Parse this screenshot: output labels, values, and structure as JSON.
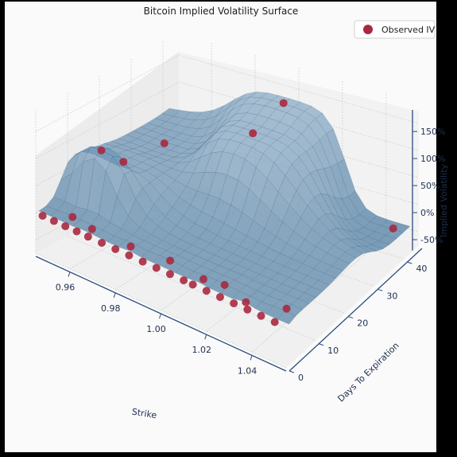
{
  "chart_data": {
    "type": "surface",
    "title": "Bitcoin Implied Volatility Surface",
    "xlabel": "Strike",
    "ylabel": "Days To Expiration",
    "zlabel": "Implied Volatility",
    "xlim": [
      0.945,
      1.055
    ],
    "ylim": [
      0,
      45
    ],
    "zlim": [
      -75,
      190
    ],
    "x_ticks": [
      {
        "value": 0.96,
        "label": "0.96"
      },
      {
        "value": 0.98,
        "label": "0.98"
      },
      {
        "value": 1.0,
        "label": "1.00"
      },
      {
        "value": 1.02,
        "label": "1.02"
      },
      {
        "value": 1.04,
        "label": "1.04"
      }
    ],
    "y_ticks": [
      {
        "value": 0,
        "label": "0"
      },
      {
        "value": 10,
        "label": "10"
      },
      {
        "value": 20,
        "label": "20"
      },
      {
        "value": 30,
        "label": "30"
      },
      {
        "value": 40,
        "label": "40"
      }
    ],
    "z_ticks": [
      {
        "value": -50,
        "label": "-50%"
      },
      {
        "value": 0,
        "label": "0%"
      },
      {
        "value": 50,
        "label": "50%"
      },
      {
        "value": 100,
        "label": "100%"
      },
      {
        "value": 150,
        "label": "150%"
      }
    ],
    "legend": {
      "position": "top-right",
      "entries": [
        {
          "label": "Observed IV",
          "color": "#a8293f"
        }
      ]
    },
    "surface_color": "#3a6e99",
    "grid": true,
    "series": [
      {
        "name": "Observed IV",
        "type": "scatter",
        "points": [
          {
            "x": 0.948,
            "y": 0,
            "z": 0
          },
          {
            "x": 0.953,
            "y": 0,
            "z": 0
          },
          {
            "x": 0.958,
            "y": 0,
            "z": 0
          },
          {
            "x": 0.957,
            "y": 3,
            "z": 5
          },
          {
            "x": 0.963,
            "y": 0,
            "z": 0
          },
          {
            "x": 0.968,
            "y": 0,
            "z": 0
          },
          {
            "x": 0.967,
            "y": 2,
            "z": 5
          },
          {
            "x": 0.974,
            "y": 0,
            "z": 0
          },
          {
            "x": 0.98,
            "y": 0,
            "z": 0
          },
          {
            "x": 0.984,
            "y": 2,
            "z": 5
          },
          {
            "x": 0.986,
            "y": 0,
            "z": 0
          },
          {
            "x": 0.992,
            "y": 0,
            "z": 0
          },
          {
            "x": 0.998,
            "y": 0,
            "z": 0
          },
          {
            "x": 1.0,
            "y": 3,
            "z": 5
          },
          {
            "x": 1.004,
            "y": 0,
            "z": 0
          },
          {
            "x": 1.01,
            "y": 0,
            "z": 0
          },
          {
            "x": 1.014,
            "y": 0,
            "z": 0
          },
          {
            "x": 1.016,
            "y": 2,
            "z": 5
          },
          {
            "x": 1.02,
            "y": 0,
            "z": 0
          },
          {
            "x": 1.024,
            "y": 3,
            "z": 5
          },
          {
            "x": 1.026,
            "y": 0,
            "z": 0
          },
          {
            "x": 1.032,
            "y": 0,
            "z": 0
          },
          {
            "x": 1.036,
            "y": 1,
            "z": 5
          },
          {
            "x": 1.038,
            "y": 0,
            "z": 0
          },
          {
            "x": 1.044,
            "y": 0,
            "z": 0
          },
          {
            "x": 1.05,
            "y": 0,
            "z": 0
          },
          {
            "x": 1.05,
            "y": 4,
            "z": 5
          },
          {
            "x": 0.96,
            "y": 10,
            "z": 110
          },
          {
            "x": 0.96,
            "y": 17,
            "z": 65
          },
          {
            "x": 0.96,
            "y": 30,
            "z": 55
          },
          {
            "x": 1.0,
            "y": 30,
            "z": 130
          },
          {
            "x": 1.0,
            "y": 40,
            "z": 145
          },
          {
            "x": 1.05,
            "y": 40,
            "z": -25
          }
        ]
      }
    ]
  }
}
